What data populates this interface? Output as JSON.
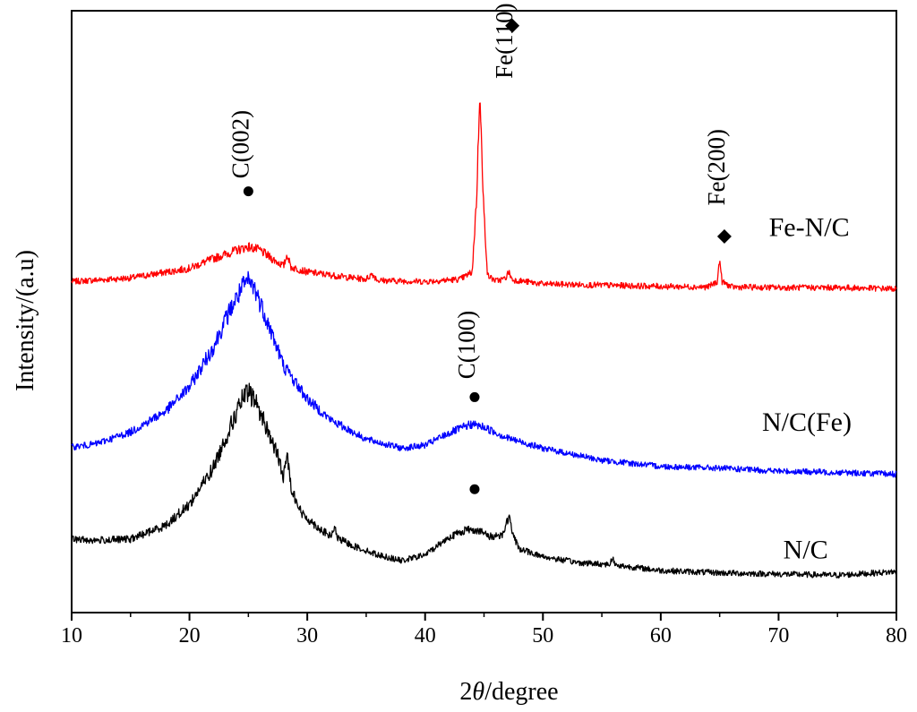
{
  "chart_data": {
    "type": "line",
    "title": "",
    "xlabel_prefix": "2",
    "xlabel_symbol": "θ",
    "xlabel_suffix": "/degree",
    "ylabel": "Intensity/(a.u)",
    "xlim": [
      10,
      80
    ],
    "ylim": [
      0,
      100
    ],
    "x_ticks": [
      10,
      20,
      30,
      40,
      50,
      60,
      70,
      80
    ],
    "series": [
      {
        "name": "Fe-N/C",
        "color": "#ff0000",
        "baseline": 55,
        "points": [
          [
            10,
            55.0
          ],
          [
            15,
            55.6
          ],
          [
            20,
            57.2
          ],
          [
            22,
            58.8
          ],
          [
            24,
            60.2
          ],
          [
            25,
            60.8
          ],
          [
            26,
            60.2
          ],
          [
            27,
            58.8
          ],
          [
            28,
            57.6
          ],
          [
            28.3,
            59.6
          ],
          [
            28.6,
            57.4
          ],
          [
            30,
            56.6
          ],
          [
            33,
            55.8
          ],
          [
            35,
            55.4
          ],
          [
            35.5,
            56.3
          ],
          [
            36,
            55.2
          ],
          [
            40,
            55.0
          ],
          [
            43,
            55.4
          ],
          [
            44,
            56.6
          ],
          [
            44.4,
            70
          ],
          [
            44.65,
            88
          ],
          [
            44.9,
            70
          ],
          [
            45.3,
            56.0
          ],
          [
            46,
            55.1
          ],
          [
            46.8,
            55.5
          ],
          [
            47.1,
            56.6
          ],
          [
            47.4,
            55.3
          ],
          [
            50,
            54.6
          ],
          [
            55,
            54.4
          ],
          [
            60,
            54.2
          ],
          [
            64,
            54.1
          ],
          [
            64.8,
            55.0
          ],
          [
            65.0,
            58.8
          ],
          [
            65.2,
            55.0
          ],
          [
            66,
            54.1
          ],
          [
            70,
            54.0
          ],
          [
            75,
            54.0
          ],
          [
            80,
            53.8
          ]
        ]
      },
      {
        "name": "N/C(Fe)",
        "color": "#0000ff",
        "baseline": 27,
        "points": [
          [
            10,
            27.5
          ],
          [
            12,
            28.0
          ],
          [
            15,
            30.0
          ],
          [
            18,
            33.5
          ],
          [
            20,
            37.5
          ],
          [
            22,
            44.0
          ],
          [
            23.5,
            50.5
          ],
          [
            24.5,
            54.0
          ],
          [
            25,
            55.0
          ],
          [
            25.5,
            54.0
          ],
          [
            26.5,
            49.0
          ],
          [
            28,
            41.0
          ],
          [
            30,
            35.5
          ],
          [
            32,
            32.0
          ],
          [
            35,
            28.8
          ],
          [
            38,
            27.3
          ],
          [
            40,
            27.8
          ],
          [
            42,
            29.8
          ],
          [
            43.5,
            31.0
          ],
          [
            44,
            31.3
          ],
          [
            45,
            30.8
          ],
          [
            47,
            29.0
          ],
          [
            50,
            27.3
          ],
          [
            55,
            25.3
          ],
          [
            60,
            24.3
          ],
          [
            65,
            24.0
          ],
          [
            70,
            23.5
          ],
          [
            75,
            23.3
          ],
          [
            80,
            23.0
          ]
        ]
      },
      {
        "name": "N/C",
        "color": "#000000",
        "baseline": 10,
        "points": [
          [
            10,
            12.2
          ],
          [
            12,
            12.0
          ],
          [
            15,
            12.2
          ],
          [
            18,
            14.5
          ],
          [
            20,
            18.0
          ],
          [
            22,
            24.0
          ],
          [
            23.5,
            31.0
          ],
          [
            24.5,
            35.5
          ],
          [
            25,
            36.5
          ],
          [
            25.5,
            35.5
          ],
          [
            26.5,
            31.0
          ],
          [
            27.5,
            26.0
          ],
          [
            28,
            22.5
          ],
          [
            28.3,
            26.5
          ],
          [
            28.6,
            21.0
          ],
          [
            29.5,
            16.5
          ],
          [
            31,
            14.0
          ],
          [
            32,
            12.6
          ],
          [
            32.3,
            14.2
          ],
          [
            32.6,
            12.3
          ],
          [
            34,
            11.0
          ],
          [
            36,
            9.6
          ],
          [
            38,
            8.6
          ],
          [
            40,
            9.6
          ],
          [
            42,
            12.5
          ],
          [
            43.5,
            13.8
          ],
          [
            44.5,
            13.7
          ],
          [
            45.5,
            12.6
          ],
          [
            46.6,
            13.0
          ],
          [
            47.1,
            16.0
          ],
          [
            47.5,
            12.6
          ],
          [
            48,
            10.6
          ],
          [
            50,
            9.3
          ],
          [
            53,
            8.3
          ],
          [
            55.7,
            8.0
          ],
          [
            55.9,
            9.4
          ],
          [
            56.1,
            7.9
          ],
          [
            60,
            7.0
          ],
          [
            65,
            6.6
          ],
          [
            70,
            6.4
          ],
          [
            75,
            6.2
          ],
          [
            80,
            6.8
          ]
        ]
      }
    ],
    "series_labels": [
      {
        "text": "Fe-N/C",
        "x": 72.6,
        "y": 62.6
      },
      {
        "text": "N/C(Fe)",
        "x": 72.4,
        "y": 30.2
      },
      {
        "text": "N/C",
        "x": 72.3,
        "y": 9.0
      }
    ],
    "annotations": [
      {
        "text": "C(002)",
        "x": 25.0,
        "y": 77.8,
        "marker": "circle",
        "marker_y": 70.0
      },
      {
        "text": "Fe(110)",
        "x": 47.4,
        "y": 95.0,
        "marker": "diamond",
        "marker_y": 97.5
      },
      {
        "text": "Fe(200)",
        "x": 65.4,
        "y": 74.0,
        "marker": "diamond",
        "marker_y": 62.5
      },
      {
        "text": "C(100)",
        "x": 44.2,
        "y": 44.5,
        "marker": "circle",
        "marker_y": 35.8
      },
      {
        "text": "",
        "x": 44.2,
        "y": 20.5,
        "marker": "circle",
        "marker_y": 20.5
      }
    ]
  }
}
